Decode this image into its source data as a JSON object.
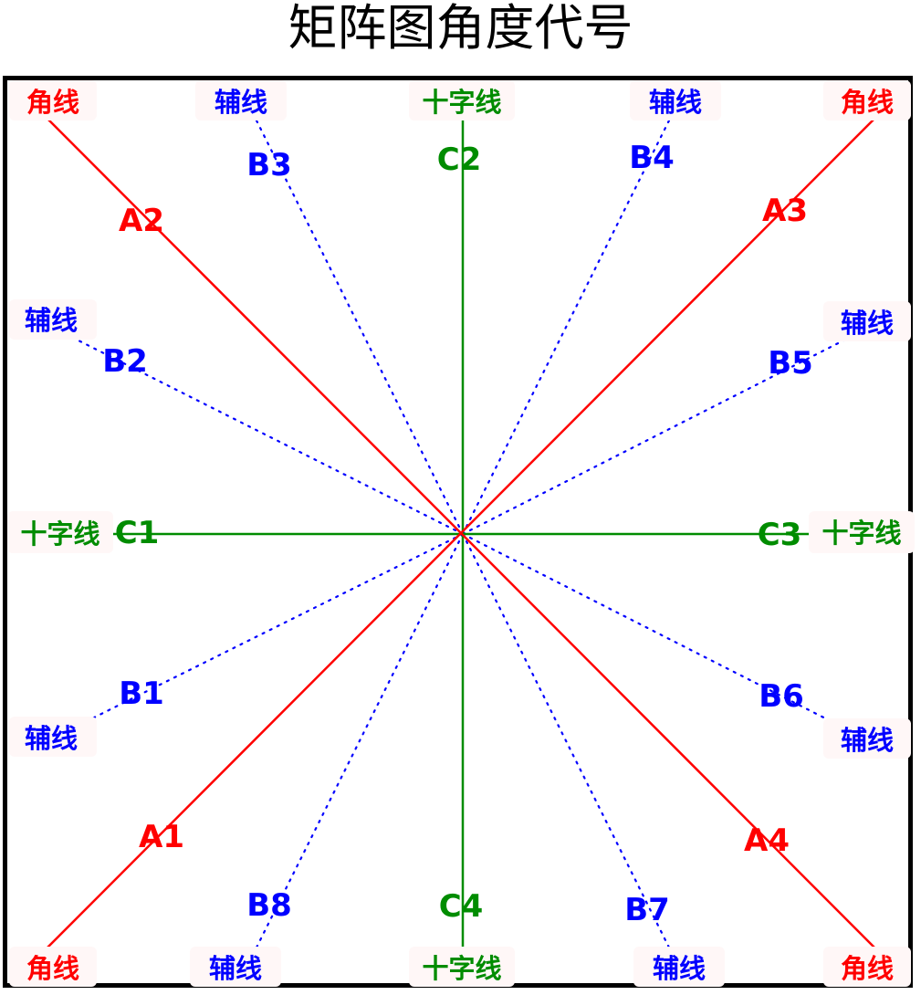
{
  "title": "矩阵图角度代号",
  "colors": {
    "corner": "#ff0000",
    "aux": "#0000ff",
    "cross": "#008c00",
    "frame": "#000000"
  },
  "labels": {
    "corner": "角线",
    "aux": "辅线",
    "cross": "十字线"
  },
  "codes": {
    "A1": "A1",
    "A2": "A2",
    "A3": "A3",
    "A4": "A4",
    "B1": "B1",
    "B2": "B2",
    "B3": "B3",
    "B4": "B4",
    "B5": "B5",
    "B6": "B6",
    "B7": "B7",
    "B8": "B8",
    "C1": "C1",
    "C2": "C2",
    "C3": "C3",
    "C4": "C4"
  }
}
